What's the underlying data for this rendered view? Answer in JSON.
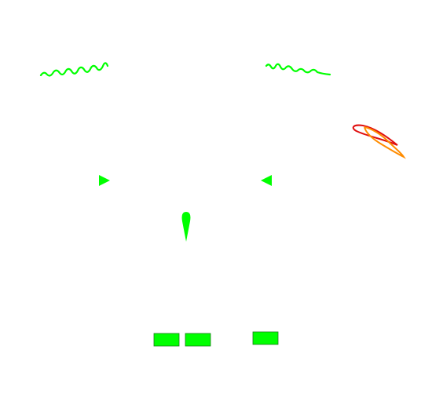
{
  "colors": {
    "background": "#ffffff",
    "primary": "#00ff00",
    "stroke_dark": "#1a7a1a",
    "loop_red": "#e01010",
    "loop_orange": "#ff8c00"
  },
  "shapes": {
    "eyebrows": [
      "left-eyebrow",
      "right-eyebrow"
    ],
    "eyes": [
      "left-eye-triangle",
      "right-eye-triangle"
    ],
    "nose": "nose-teardrop",
    "mouth": [
      "mouth-block-left",
      "mouth-block-center",
      "mouth-block-right"
    ],
    "decoration": "loop-scribble"
  }
}
